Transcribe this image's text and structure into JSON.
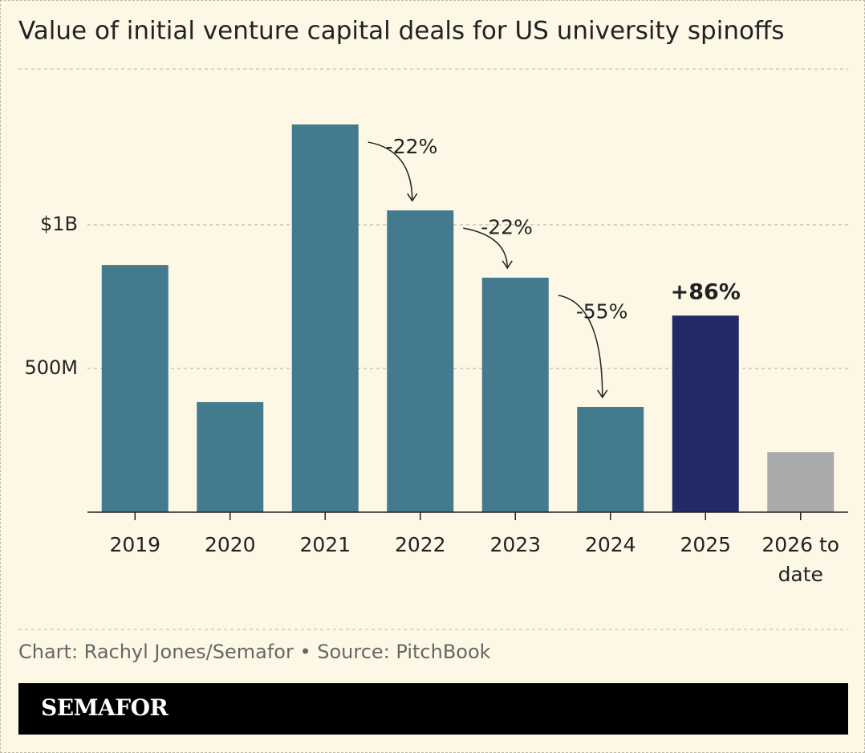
{
  "chart_data": {
    "type": "bar",
    "title": "Value of initial venture capital deals for US university spinoffs",
    "categories": [
      "2019",
      "2020",
      "2021",
      "2022",
      "2023",
      "2024",
      "2025",
      "2026 to date"
    ],
    "values": [
      860,
      383,
      1349,
      1050,
      816,
      366,
      684,
      209
    ],
    "colors": [
      "#447a8e",
      "#447a8e",
      "#447a8e",
      "#447a8e",
      "#447a8e",
      "#447a8e",
      "#232a66",
      "#aaaaaa"
    ],
    "annotations": [
      null,
      null,
      null,
      "-22%",
      "-22%",
      "-55%",
      "+86%",
      null
    ],
    "ylim": [
      0,
      1500
    ],
    "yticks": [
      {
        "value": 500,
        "label": "500M"
      },
      {
        "value": 1000,
        "label": "$1B"
      }
    ],
    "grid": true,
    "source": "Chart: Rachyl Jones/Semafor • Source: PitchBook",
    "brand": "SEMAFOR"
  }
}
